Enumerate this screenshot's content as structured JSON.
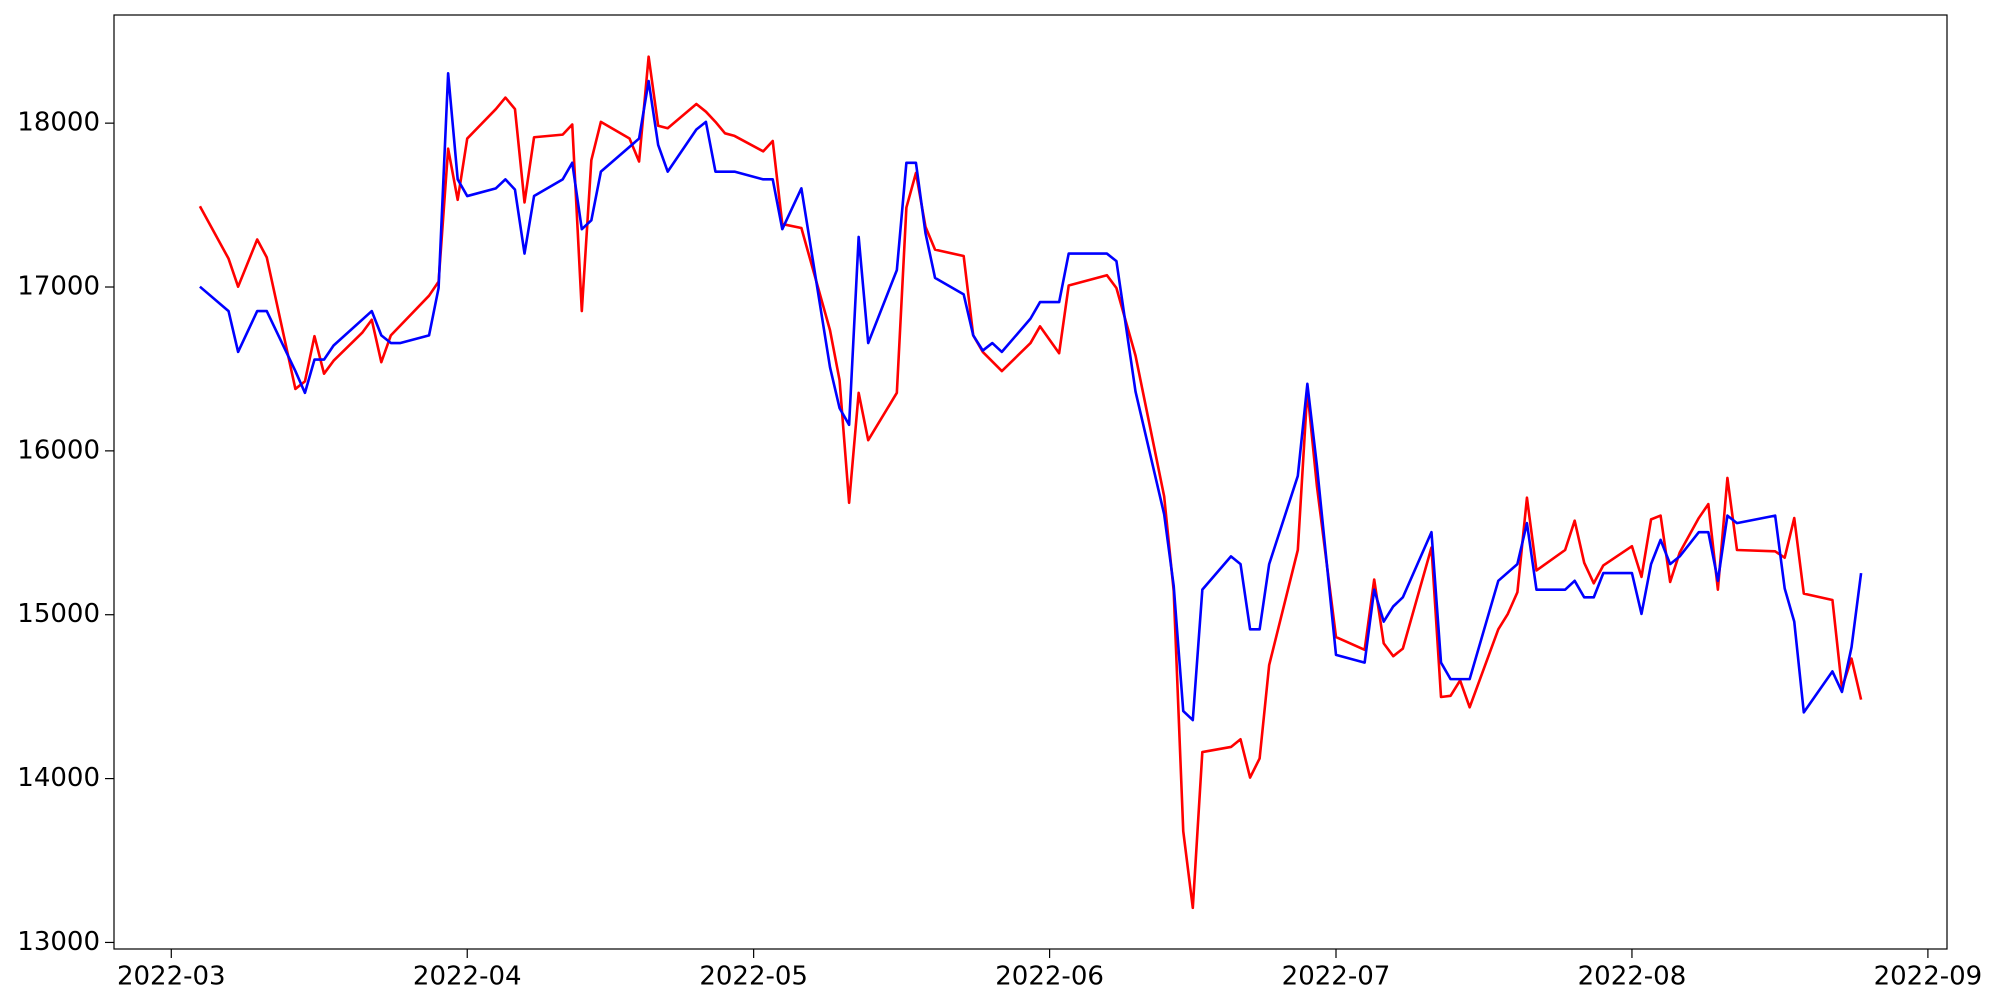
{
  "chart_data": {
    "type": "line",
    "xlim": [
      -6,
      186
    ],
    "xticks": [
      {
        "value": 0,
        "label": "2022-03"
      },
      {
        "value": 31,
        "label": "2022-04"
      },
      {
        "value": 61,
        "label": "2022-05"
      },
      {
        "value": 92,
        "label": "2022-06"
      },
      {
        "value": 122,
        "label": "2022-07"
      },
      {
        "value": 153,
        "label": "2022-08"
      },
      {
        "value": 184,
        "label": "2022-09"
      }
    ],
    "ylim": [
      12960,
      18660
    ],
    "yticks": [
      13000,
      14000,
      15000,
      16000,
      17000,
      18000
    ],
    "grid": false,
    "series": [
      {
        "color": "#ff0000",
        "x": [
          3,
          6,
          7,
          9,
          10,
          13,
          14,
          15,
          16,
          17,
          20,
          21,
          22,
          23,
          27,
          28,
          29,
          30,
          31,
          34,
          35,
          36,
          37,
          38,
          41,
          42,
          43,
          44,
          45,
          48,
          49,
          50,
          51,
          52,
          55,
          56,
          57,
          58,
          59,
          62,
          63,
          64,
          66,
          69,
          70,
          71,
          72,
          73,
          76,
          77,
          78,
          79,
          80,
          83,
          84,
          85,
          87,
          90,
          91,
          93,
          94,
          98,
          99,
          101,
          104,
          105,
          106,
          107,
          108,
          111,
          112,
          113,
          114,
          115,
          118,
          119,
          120,
          122,
          125,
          126,
          127,
          128,
          129,
          132,
          133,
          134,
          135,
          136,
          139,
          140,
          141,
          142,
          143,
          146,
          147,
          148,
          149,
          150,
          153,
          154,
          155,
          156,
          157,
          158,
          160,
          161,
          162,
          163,
          164,
          168,
          169,
          170,
          171,
          174,
          175,
          176,
          177
        ],
        "values": [
          17493,
          17173,
          17002,
          17290,
          17181,
          16378,
          16424,
          16700,
          16471,
          16550,
          16721,
          16800,
          16541,
          16705,
          16947,
          17033,
          17844,
          17532,
          17906,
          18086,
          18156,
          18086,
          17516,
          17914,
          17930,
          17992,
          16853,
          17774,
          18008,
          17906,
          17766,
          18406,
          17984,
          17969,
          18117,
          18070,
          18008,
          17938,
          17922,
          17828,
          17891,
          17384,
          17360,
          16736,
          16432,
          15683,
          16354,
          16065,
          16354,
          17485,
          17696,
          17368,
          17228,
          17189,
          16705,
          16604,
          16487,
          16658,
          16760,
          16596,
          17009,
          17072,
          16994,
          16581,
          15722,
          15145,
          13679,
          13211,
          14162,
          14193,
          14240,
          14006,
          14123,
          14693,
          15395,
          16370,
          15785,
          14864,
          14786,
          15215,
          14825,
          14747,
          14793,
          15410,
          14498,
          14505,
          14599,
          14435,
          14911,
          15005,
          15137,
          15714,
          15270,
          15395,
          15574,
          15317,
          15192,
          15301,
          15418,
          15231,
          15582,
          15605,
          15200,
          15379,
          15590,
          15675,
          15153,
          15835,
          15395,
          15387,
          15348,
          15590,
          15129,
          15090,
          14552,
          14732,
          14482
        ]
      },
      {
        "color": "#0000ff",
        "x": [
          3,
          6,
          7,
          9,
          10,
          13,
          14,
          15,
          16,
          17,
          21,
          22,
          23,
          24,
          27,
          28,
          29,
          30,
          31,
          34,
          35,
          36,
          37,
          38,
          41,
          42,
          43,
          44,
          45,
          49,
          50,
          51,
          52,
          55,
          56,
          57,
          59,
          62,
          63,
          64,
          66,
          69,
          70,
          71,
          72,
          73,
          76,
          77,
          78,
          79,
          80,
          83,
          84,
          85,
          86,
          87,
          90,
          91,
          93,
          94,
          98,
          99,
          101,
          104,
          105,
          106,
          107,
          108,
          111,
          112,
          113,
          114,
          115,
          118,
          119,
          120,
          122,
          125,
          126,
          127,
          128,
          129,
          132,
          133,
          134,
          136,
          139,
          141,
          142,
          143,
          146,
          147,
          148,
          149,
          150,
          153,
          154,
          155,
          156,
          157,
          158,
          160,
          161,
          162,
          163,
          164,
          168,
          169,
          170,
          171,
          174,
          175,
          176,
          177
        ],
        "values": [
          17002,
          16853,
          16604,
          16853,
          16853,
          16487,
          16354,
          16557,
          16557,
          16643,
          16853,
          16705,
          16658,
          16658,
          16705,
          16994,
          18304,
          17657,
          17555,
          17602,
          17657,
          17594,
          17204,
          17555,
          17657,
          17758,
          17353,
          17407,
          17704,
          17906,
          18257,
          17867,
          17704,
          17961,
          18008,
          17704,
          17704,
          17657,
          17657,
          17353,
          17602,
          16510,
          16261,
          16159,
          17306,
          16658,
          17103,
          17758,
          17758,
          17329,
          17056,
          16955,
          16705,
          16612,
          16658,
          16604,
          16807,
          16908,
          16908,
          17204,
          17204,
          17158,
          16362,
          15613,
          15176,
          14412,
          14357,
          15153,
          15356,
          15309,
          14911,
          14911,
          15309,
          15847,
          16409,
          15910,
          14755,
          14708,
          15153,
          14958,
          15051,
          15106,
          15504,
          14708,
          14607,
          14607,
          15207,
          15309,
          15559,
          15153,
          15153,
          15207,
          15106,
          15106,
          15254,
          15254,
          15005,
          15309,
          15457,
          15309,
          15356,
          15504,
          15504,
          15207,
          15605,
          15559,
          15605,
          15160,
          14958,
          14404,
          14654,
          14529,
          14802,
          15254
        ]
      }
    ]
  }
}
